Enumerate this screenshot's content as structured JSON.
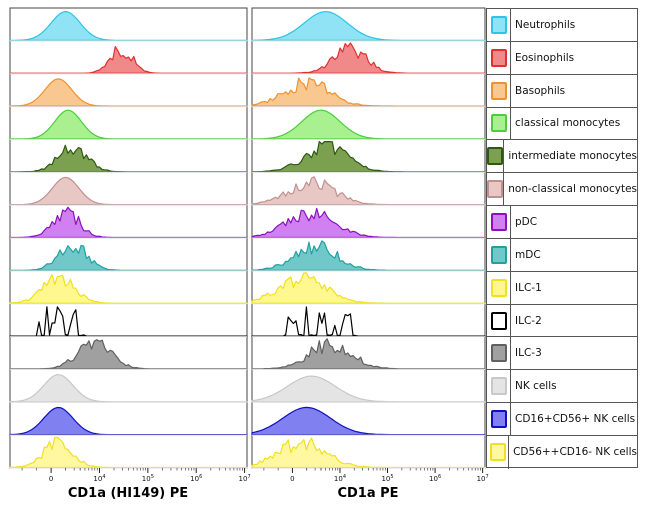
{
  "chart_data": [
    {
      "type": "histogram",
      "panel": "left",
      "xlabel": "CD1a (HI149) PE",
      "xscale": "biexponential",
      "xlim": [
        -2000,
        10000000
      ],
      "xticks": [
        "0",
        "10^4",
        "10^5",
        "10^6",
        "10^7"
      ],
      "series": [
        {
          "name": "Neutrophils",
          "color": "#2ec4e6",
          "fill": "#8fe3f5",
          "shape": "smooth",
          "center": 0.3,
          "width": 0.6,
          "amp": 0.95
        },
        {
          "name": "Eosinophils",
          "color": "#e03030",
          "fill": "#f08a8a",
          "shape": "noisy",
          "center": 1.45,
          "width": 0.45,
          "amp": 0.9
        },
        {
          "name": "Basophils",
          "color": "#f09030",
          "fill": "#f8c890",
          "shape": "smooth",
          "center": 0.15,
          "width": 0.55,
          "amp": 0.9
        },
        {
          "name": "classical monocytes",
          "color": "#4ccd3a",
          "fill": "#a8f090",
          "shape": "smooth",
          "center": 0.35,
          "width": 0.55,
          "amp": 0.95
        },
        {
          "name": "intermediate monocytes",
          "color": "#2d5a10",
          "fill": "#7aa050",
          "shape": "noisy",
          "center": 0.45,
          "width": 0.6,
          "amp": 0.9
        },
        {
          "name": "non-classical monocytes",
          "color": "#c09090",
          "fill": "#e8c8c4",
          "shape": "smooth",
          "center": 0.3,
          "width": 0.55,
          "amp": 0.9
        },
        {
          "name": "pDC",
          "color": "#8a10c0",
          "fill": "#d080f0",
          "shape": "noisy",
          "center": 0.3,
          "width": 0.55,
          "amp": 0.95
        },
        {
          "name": "mDC",
          "color": "#20a0a0",
          "fill": "#70c8c8",
          "shape": "noisy",
          "center": 0.45,
          "width": 0.6,
          "amp": 0.9
        },
        {
          "name": "ILC-1",
          "color": "#f0e020",
          "fill": "#fff890",
          "shape": "noisy",
          "center": 0.15,
          "width": 0.65,
          "amp": 0.9
        },
        {
          "name": "ILC-2",
          "color": "#000000",
          "fill": "#ffffff",
          "shape": "spiky",
          "center": 0.2,
          "width": 0.6,
          "amp": 1.0
        },
        {
          "name": "ILC-3",
          "color": "#606060",
          "fill": "#a0a0a0",
          "shape": "noisy",
          "center": 0.9,
          "width": 0.7,
          "amp": 0.9
        },
        {
          "name": "NK cells",
          "color": "#c8c8c8",
          "fill": "#e4e4e4",
          "shape": "smooth",
          "center": 0.15,
          "width": 0.6,
          "amp": 0.9
        },
        {
          "name": "CD16+CD56+ NK cells",
          "color": "#1010c0",
          "fill": "#8080f0",
          "shape": "smooth",
          "center": 0.15,
          "width": 0.6,
          "amp": 0.9
        },
        {
          "name": "CD56++CD16- NK cells",
          "color": "#f0e020",
          "fill": "#fff8a0",
          "shape": "noisy",
          "center": 0.15,
          "width": 0.6,
          "amp": 0.9
        }
      ]
    },
    {
      "type": "histogram",
      "panel": "right",
      "xlabel": "CD1a PE",
      "xscale": "biexponential",
      "xlim": [
        -2000,
        10000000
      ],
      "xticks": [
        "0",
        "10^4",
        "10^5",
        "10^6",
        "10^7"
      ],
      "series": [
        {
          "name": "Neutrophils",
          "color": "#2ec4e6",
          "fill": "#8fe3f5",
          "shape": "smooth",
          "center": 0.7,
          "width": 0.9,
          "amp": 0.95
        },
        {
          "name": "Eosinophils",
          "color": "#e03030",
          "fill": "#f08a8a",
          "shape": "noisy",
          "center": 1.2,
          "width": 0.7,
          "amp": 0.9
        },
        {
          "name": "Basophils",
          "color": "#f09030",
          "fill": "#f8c890",
          "shape": "noisy",
          "center": 0.3,
          "width": 0.95,
          "amp": 0.85
        },
        {
          "name": "classical monocytes",
          "color": "#4ccd3a",
          "fill": "#a8f090",
          "shape": "smooth",
          "center": 0.6,
          "width": 0.8,
          "amp": 0.95
        },
        {
          "name": "intermediate monocytes",
          "color": "#2d5a10",
          "fill": "#7aa050",
          "shape": "noisy",
          "center": 0.7,
          "width": 0.9,
          "amp": 0.9
        },
        {
          "name": "non-classical monocytes",
          "color": "#c09090",
          "fill": "#e8c8c4",
          "shape": "noisy",
          "center": 0.4,
          "width": 0.95,
          "amp": 0.85
        },
        {
          "name": "pDC",
          "color": "#8a10c0",
          "fill": "#d080f0",
          "shape": "noisy",
          "center": 0.4,
          "width": 1.0,
          "amp": 0.9
        },
        {
          "name": "mDC",
          "color": "#20a0a0",
          "fill": "#70c8c8",
          "shape": "noisy",
          "center": 0.5,
          "width": 0.9,
          "amp": 0.9
        },
        {
          "name": "ILC-1",
          "color": "#f0e020",
          "fill": "#fff890",
          "shape": "noisy",
          "center": 0.2,
          "width": 1.0,
          "amp": 0.9
        },
        {
          "name": "ILC-2",
          "color": "#000000",
          "fill": "#ffffff",
          "shape": "spiky",
          "center": 0.6,
          "width": 0.9,
          "amp": 1.0
        },
        {
          "name": "ILC-3",
          "color": "#606060",
          "fill": "#a0a0a0",
          "shape": "noisy",
          "center": 0.8,
          "width": 0.9,
          "amp": 0.9
        },
        {
          "name": "NK cells",
          "color": "#c8c8c8",
          "fill": "#e4e4e4",
          "shape": "smooth",
          "center": 0.4,
          "width": 1.0,
          "amp": 0.85
        },
        {
          "name": "CD16+CD56+ NK cells",
          "color": "#1010c0",
          "fill": "#8080f0",
          "shape": "smooth",
          "center": 0.3,
          "width": 1.0,
          "amp": 0.9
        },
        {
          "name": "CD56++CD16- NK cells",
          "color": "#f0e020",
          "fill": "#fff8a0",
          "shape": "noisy",
          "center": 0.2,
          "width": 1.0,
          "amp": 0.9
        }
      ]
    }
  ],
  "legend": {
    "items": [
      {
        "label": "Neutrophils",
        "color": "#2ec4e6",
        "fill": "#8fe3f5"
      },
      {
        "label": "Eosinophils",
        "color": "#e03030",
        "fill": "#f08a8a"
      },
      {
        "label": "Basophils",
        "color": "#f09030",
        "fill": "#f8c890"
      },
      {
        "label": "classical monocytes",
        "color": "#4ccd3a",
        "fill": "#a8f090"
      },
      {
        "label": "intermediate monocytes",
        "color": "#2d5a10",
        "fill": "#7aa050"
      },
      {
        "label": "non-classical monocytes",
        "color": "#c09090",
        "fill": "#e8c8c4"
      },
      {
        "label": "pDC",
        "color": "#8a10c0",
        "fill": "#d080f0"
      },
      {
        "label": "mDC",
        "color": "#20a0a0",
        "fill": "#70c8c8"
      },
      {
        "label": "ILC-1",
        "color": "#f0e020",
        "fill": "#fff890"
      },
      {
        "label": "ILC-2",
        "color": "#000000",
        "fill": "#ffffff"
      },
      {
        "label": "ILC-3",
        "color": "#606060",
        "fill": "#a0a0a0"
      },
      {
        "label": "NK cells",
        "color": "#c8c8c8",
        "fill": "#e4e4e4"
      },
      {
        "label": "CD16+CD56+ NK cells",
        "color": "#1010c0",
        "fill": "#8080f0"
      },
      {
        "label": "CD56++CD16- NK cells",
        "color": "#f0e020",
        "fill": "#fff8a0"
      }
    ]
  }
}
